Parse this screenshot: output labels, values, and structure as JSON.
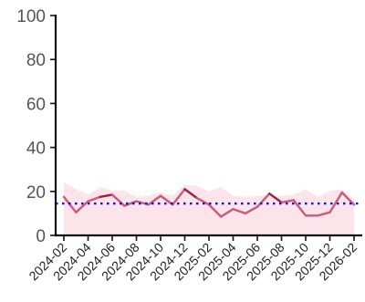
{
  "chart_data": {
    "type": "line",
    "x": [
      "2024-02",
      "2024-03",
      "2024-04",
      "2024-05",
      "2024-06",
      "2024-07",
      "2024-08",
      "2024-09",
      "2024-10",
      "2024-11",
      "2024-12",
      "2025-01",
      "2025-02",
      "2025-03",
      "2025-04",
      "2025-05",
      "2025-06",
      "2025-07",
      "2025-08",
      "2025-09",
      "2025-10",
      "2025-11",
      "2025-12",
      "2026-01",
      "2026-02"
    ],
    "x_ticks": [
      "2024-02",
      "2024-04",
      "2024-06",
      "2024-08",
      "2024-10",
      "2024-12",
      "2025-02",
      "2025-04",
      "2025-06",
      "2025-08",
      "2025-10",
      "2025-12",
      "2026-02"
    ],
    "y_ticks": [
      0,
      20,
      40,
      60,
      80,
      100
    ],
    "ylim": [
      0,
      100
    ],
    "series": [
      {
        "values": [
          17.5,
          10.5,
          15.5,
          17.5,
          18.5,
          13.5,
          15.5,
          14,
          18,
          14,
          21,
          17,
          14,
          8.5,
          12,
          10,
          13,
          19,
          15,
          16,
          9,
          9,
          10.5,
          19.5,
          14
        ]
      }
    ],
    "band": {
      "upper": [
        24,
        21,
        18.5,
        22,
        20.5,
        20.5,
        17.5,
        18,
        19.5,
        18,
        23,
        22.5,
        20,
        22,
        18,
        17.5,
        18,
        18,
        18,
        18.5,
        21,
        17.5,
        20,
        21,
        16.5
      ],
      "lower": [
        0,
        0,
        0,
        0,
        0,
        0,
        0,
        0,
        0,
        0,
        0,
        0,
        0,
        0,
        0,
        0,
        0,
        0,
        0,
        0,
        0,
        0,
        0,
        0,
        0
      ]
    },
    "reference_line": 14.5,
    "grid": false,
    "colors": {
      "line_main": "#c65b7c",
      "line_high": "#9e1f3a",
      "band": "#fde3ea",
      "reference": "#1515c8",
      "axis": "#111111"
    }
  }
}
